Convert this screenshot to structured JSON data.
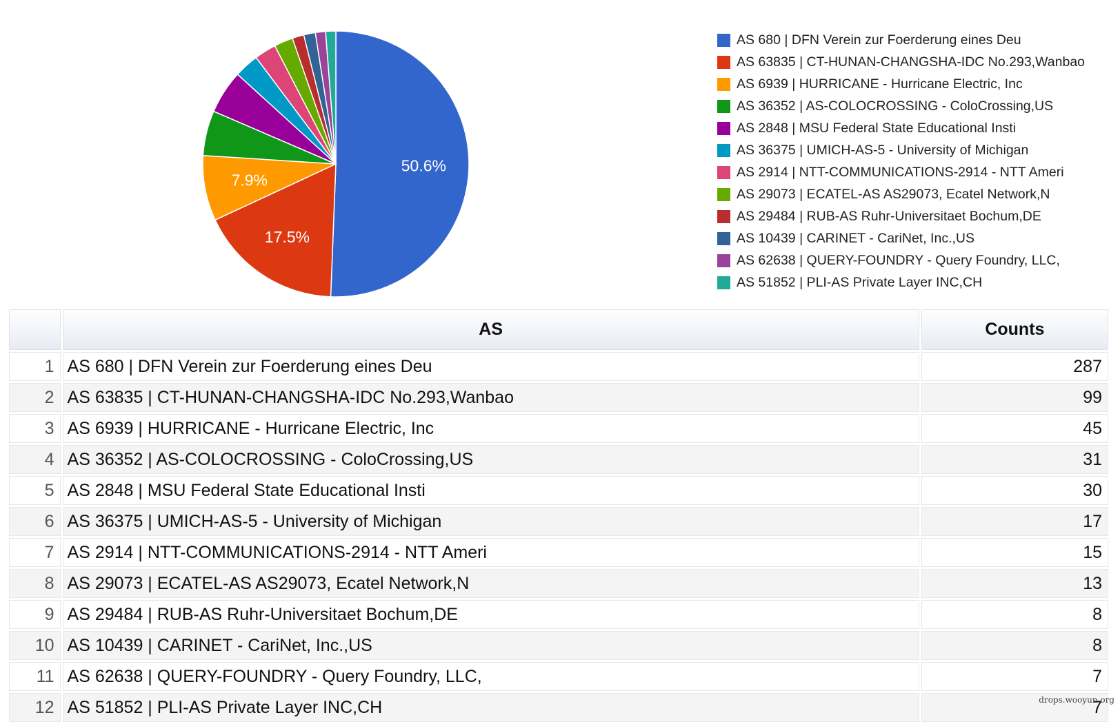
{
  "chart_data": {
    "type": "pie",
    "title": "",
    "legend_position": "right",
    "slices": [
      {
        "label": "AS 680 | DFN Verein zur Foerderung eines Deu",
        "value": 287,
        "color": "#3366cc",
        "pct_label": "50.6%"
      },
      {
        "label": "AS 63835 | CT-HUNAN-CHANGSHA-IDC No.293,Wanbao",
        "value": 99,
        "color": "#dc3912",
        "pct_label": "17.5%"
      },
      {
        "label": "AS 6939 | HURRICANE - Hurricane Electric, Inc",
        "value": 45,
        "color": "#ff9900",
        "pct_label": "7.9%"
      },
      {
        "label": "AS 36352 | AS-COLOCROSSING - ColoCrossing,US",
        "value": 31,
        "color": "#109618",
        "pct_label": ""
      },
      {
        "label": "AS 2848 | MSU Federal State Educational Insti",
        "value": 30,
        "color": "#990099",
        "pct_label": ""
      },
      {
        "label": "AS 36375 | UMICH-AS-5 - University of Michigan",
        "value": 17,
        "color": "#0099c6",
        "pct_label": ""
      },
      {
        "label": "AS 2914 | NTT-COMMUNICATIONS-2914 - NTT Ameri",
        "value": 15,
        "color": "#dd4477",
        "pct_label": ""
      },
      {
        "label": "AS 29073 | ECATEL-AS AS29073, Ecatel Network,N",
        "value": 13,
        "color": "#66aa00",
        "pct_label": ""
      },
      {
        "label": "AS 29484 | RUB-AS Ruhr-Universitaet Bochum,DE",
        "value": 8,
        "color": "#b82e2e",
        "pct_label": ""
      },
      {
        "label": "AS 10439 | CARINET - CariNet, Inc.,US",
        "value": 8,
        "color": "#316395",
        "pct_label": ""
      },
      {
        "label": "AS 62638 | QUERY-FOUNDRY - Query Foundry, LLC,",
        "value": 7,
        "color": "#994499",
        "pct_label": ""
      },
      {
        "label": "AS 51852 | PLI-AS Private Layer INC,CH",
        "value": 7,
        "color": "#22aa99",
        "pct_label": ""
      }
    ]
  },
  "table": {
    "headers": {
      "index": "",
      "as": "AS",
      "counts": "Counts"
    },
    "rows": [
      {
        "index": "1",
        "as": "AS 680 | DFN Verein zur Foerderung eines Deu",
        "counts": "287"
      },
      {
        "index": "2",
        "as": "AS 63835 | CT-HUNAN-CHANGSHA-IDC No.293,Wanbao",
        "counts": "99"
      },
      {
        "index": "3",
        "as": "AS 6939 | HURRICANE - Hurricane Electric, Inc",
        "counts": "45"
      },
      {
        "index": "4",
        "as": "AS 36352 | AS-COLOCROSSING - ColoCrossing,US",
        "counts": "31"
      },
      {
        "index": "5",
        "as": "AS 2848 | MSU Federal State Educational Insti",
        "counts": "30"
      },
      {
        "index": "6",
        "as": "AS 36375 | UMICH-AS-5 - University of Michigan",
        "counts": "17"
      },
      {
        "index": "7",
        "as": "AS 2914 | NTT-COMMUNICATIONS-2914 - NTT Ameri",
        "counts": "15"
      },
      {
        "index": "8",
        "as": "AS 29073 | ECATEL-AS AS29073, Ecatel Network,N",
        "counts": "13"
      },
      {
        "index": "9",
        "as": "AS 29484 | RUB-AS Ruhr-Universitaet Bochum,DE",
        "counts": "8"
      },
      {
        "index": "10",
        "as": "AS 10439 | CARINET - CariNet, Inc.,US",
        "counts": "8"
      },
      {
        "index": "11",
        "as": "AS 62638 | QUERY-FOUNDRY - Query Foundry, LLC,",
        "counts": "7"
      },
      {
        "index": "12",
        "as": "AS 51852 | PLI-AS Private Layer INC,CH",
        "counts": "7"
      }
    ]
  },
  "watermark": "drops.wooyun.org"
}
